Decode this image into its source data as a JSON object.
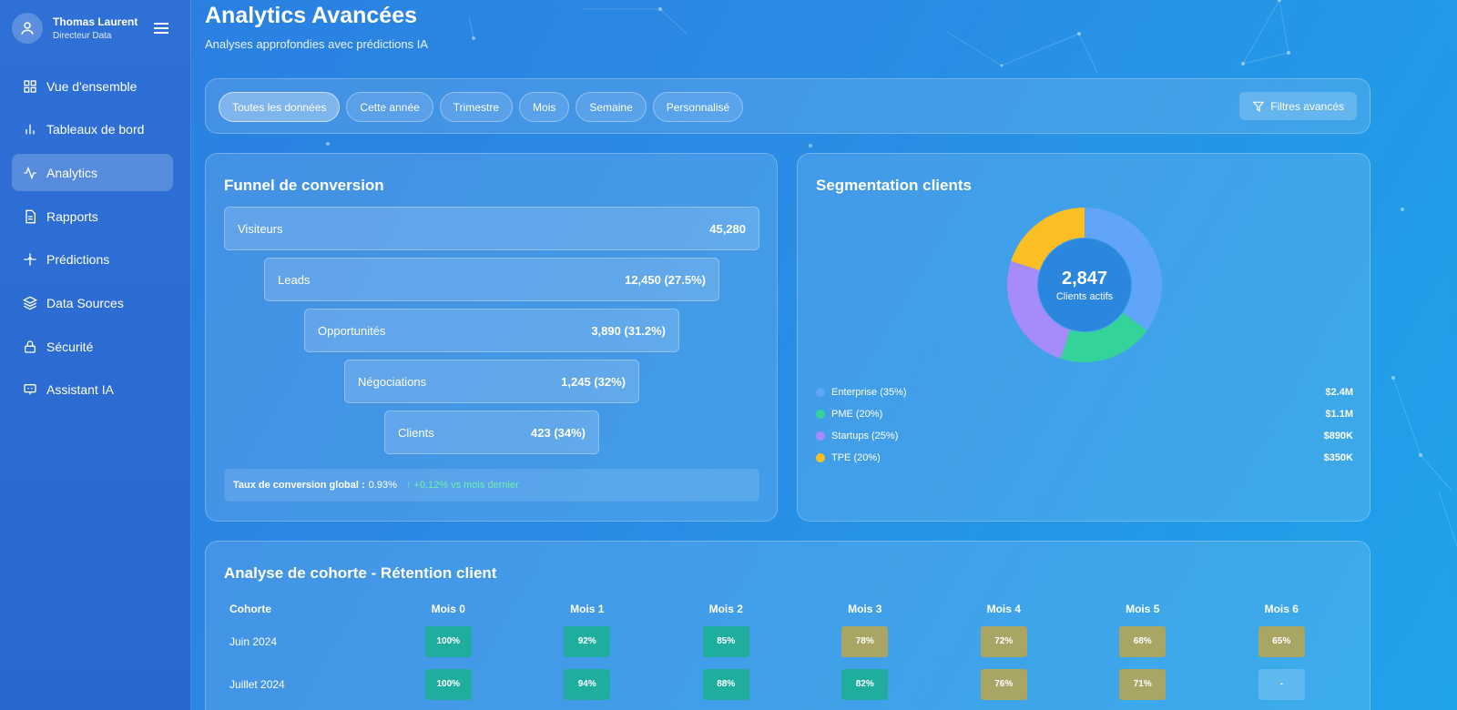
{
  "user": {
    "name": "Thomas Laurent",
    "role": "Directeur Data"
  },
  "sidebar": {
    "items": [
      {
        "label": "Vue d'ensemble",
        "icon": "grid-icon",
        "active": false
      },
      {
        "label": "Tableaux de bord",
        "icon": "bar-chart-icon",
        "active": false
      },
      {
        "label": "Analytics",
        "icon": "activity-icon",
        "active": true
      },
      {
        "label": "Rapports",
        "icon": "document-icon",
        "active": false
      },
      {
        "label": "Prédictions",
        "icon": "sparkle-icon",
        "active": false
      },
      {
        "label": "Data Sources",
        "icon": "layers-icon",
        "active": false
      },
      {
        "label": "Sécurité",
        "icon": "lock-icon",
        "active": false
      },
      {
        "label": "Assistant IA",
        "icon": "bot-icon",
        "active": false
      }
    ]
  },
  "header": {
    "title": "Analytics Avancées",
    "subtitle": "Analyses approfondies avec prédictions IA"
  },
  "filters": {
    "chips": [
      "Toutes les données",
      "Cette année",
      "Trimestre",
      "Mois",
      "Semaine",
      "Personnalisé"
    ],
    "active": "Toutes les données",
    "advanced_label": "Filtres avancés"
  },
  "funnel": {
    "title": "Funnel de conversion",
    "stages": [
      {
        "label": "Visiteurs",
        "value": "45,280"
      },
      {
        "label": "Leads",
        "value": "12,450 (27.5%)"
      },
      {
        "label": "Opportunités",
        "value": "3,890 (31.2%)"
      },
      {
        "label": "Négociations",
        "value": "1,245 (32%)"
      },
      {
        "label": "Clients",
        "value": "423 (34%)"
      }
    ],
    "conversion_label": "Taux de conversion global :",
    "conversion_value": "0.93%",
    "conversion_delta": "↑ +0.12% vs mois dernier"
  },
  "segmentation": {
    "title": "Segmentation clients",
    "center_value": "2,847",
    "center_label": "Clients actifs",
    "segments": [
      {
        "label": "Enterprise (35%)",
        "share": 35,
        "amount": "$2.4M",
        "color": "#60a5fa"
      },
      {
        "label": "PME (20%)",
        "share": 20,
        "amount": "$1.1M",
        "color": "#34d399"
      },
      {
        "label": "Startups (25%)",
        "share": 25,
        "amount": "$890K",
        "color": "#a78bfa"
      },
      {
        "label": "TPE (20%)",
        "share": 20,
        "amount": "$350K",
        "color": "#fbbf24"
      }
    ]
  },
  "cohort": {
    "title": "Analyse de cohorte - Rétention client",
    "columns": [
      "Cohorte",
      "Mois 0",
      "Mois 1",
      "Mois 2",
      "Mois 3",
      "Mois 4",
      "Mois 5",
      "Mois 6"
    ],
    "rows": [
      {
        "label": "Juin 2024",
        "cells": [
          "100%",
          "92%",
          "85%",
          "78%",
          "72%",
          "68%",
          "65%"
        ]
      },
      {
        "label": "Juillet 2024",
        "cells": [
          "100%",
          "94%",
          "88%",
          "82%",
          "76%",
          "71%",
          "-"
        ]
      }
    ],
    "colors": {
      "high": "#1fae9e",
      "mid": "#a8a565",
      "empty": "rgba(255,255,255,0.18)"
    }
  }
}
